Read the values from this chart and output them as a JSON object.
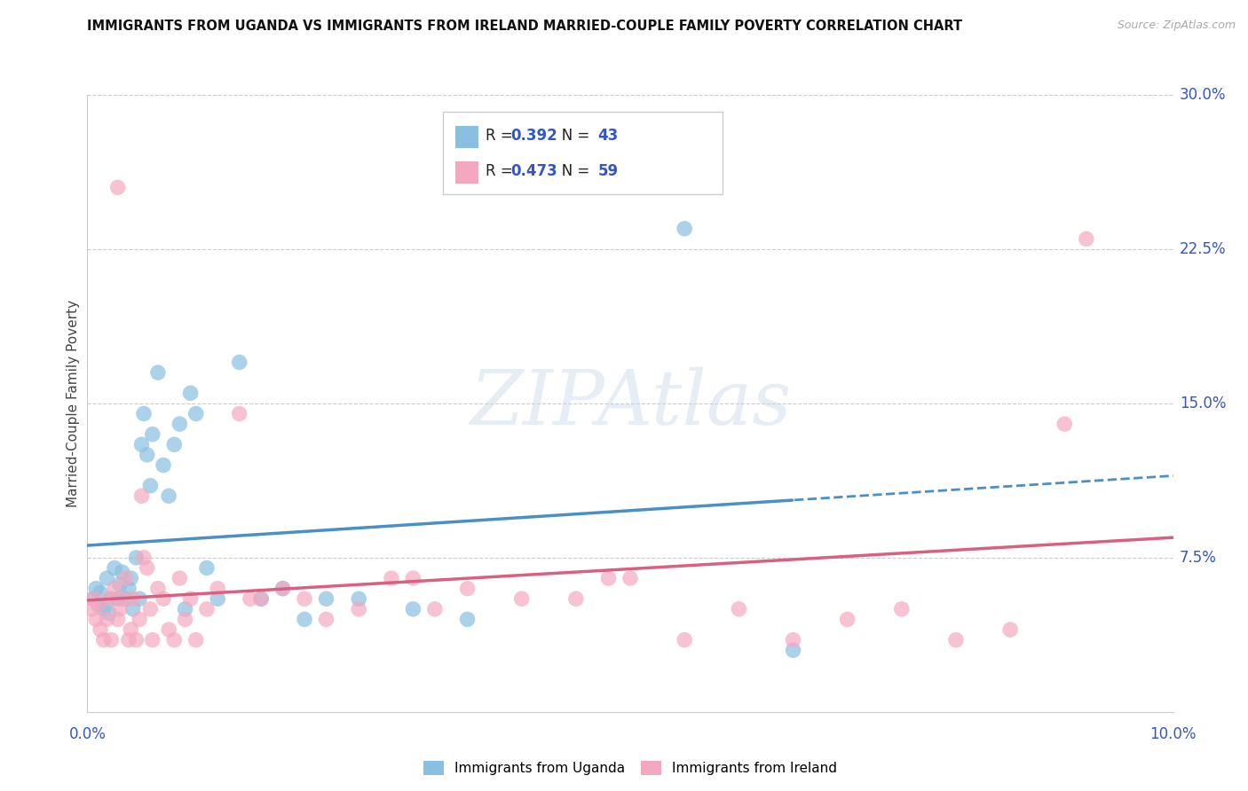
{
  "title": "IMMIGRANTS FROM UGANDA VS IMMIGRANTS FROM IRELAND MARRIED-COUPLE FAMILY POVERTY CORRELATION CHART",
  "source": "Source: ZipAtlas.com",
  "ylabel": "Married-Couple Family Poverty",
  "R_uganda": 0.392,
  "N_uganda": 43,
  "R_ireland": 0.473,
  "N_ireland": 59,
  "color_uganda": "#89bfe0",
  "color_ireland": "#f4a8c0",
  "color_uganda_line": "#4a90c4",
  "color_ireland_line": "#d96080",
  "color_blue_text": "#3355CC",
  "color_gray_text": "#999999",
  "xlim": [
    0.0,
    10.0
  ],
  "ylim": [
    0.0,
    30.0
  ],
  "yticks": [
    7.5,
    15.0,
    22.5,
    30.0
  ],
  "watermark": "ZIPAtlas",
  "uganda_x": [
    0.05,
    0.08,
    0.1,
    0.12,
    0.15,
    0.18,
    0.2,
    0.22,
    0.25,
    0.28,
    0.3,
    0.32,
    0.35,
    0.38,
    0.4,
    0.42,
    0.45,
    0.48,
    0.5,
    0.52,
    0.55,
    0.58,
    0.6,
    0.65,
    0.7,
    0.75,
    0.8,
    0.85,
    0.9,
    0.95,
    1.0,
    1.1,
    1.2,
    1.4,
    1.6,
    1.8,
    2.0,
    2.2,
    2.5,
    3.0,
    3.5,
    5.5,
    6.5
  ],
  "uganda_y": [
    5.5,
    6.0,
    5.2,
    5.8,
    5.0,
    6.5,
    4.8,
    5.5,
    7.0,
    5.5,
    6.2,
    6.8,
    5.5,
    6.0,
    6.5,
    5.0,
    7.5,
    5.5,
    13.0,
    14.5,
    12.5,
    11.0,
    13.5,
    16.5,
    12.0,
    10.5,
    13.0,
    14.0,
    5.0,
    15.5,
    14.5,
    7.0,
    5.5,
    17.0,
    5.5,
    6.0,
    4.5,
    5.5,
    5.5,
    5.0,
    4.5,
    23.5,
    3.0
  ],
  "ireland_x": [
    0.04,
    0.06,
    0.08,
    0.1,
    0.12,
    0.15,
    0.18,
    0.2,
    0.22,
    0.25,
    0.28,
    0.3,
    0.32,
    0.35,
    0.38,
    0.4,
    0.42,
    0.45,
    0.48,
    0.5,
    0.52,
    0.55,
    0.58,
    0.6,
    0.65,
    0.7,
    0.75,
    0.8,
    0.85,
    0.9,
    0.95,
    1.0,
    1.1,
    1.2,
    1.4,
    1.6,
    1.8,
    2.0,
    2.2,
    2.5,
    2.8,
    3.0,
    3.5,
    4.0,
    4.5,
    5.0,
    5.5,
    6.0,
    6.5,
    7.0,
    7.5,
    8.0,
    8.5,
    9.0,
    0.28,
    1.5,
    3.2,
    4.8,
    9.2
  ],
  "ireland_y": [
    5.0,
    5.5,
    4.5,
    5.2,
    4.0,
    3.5,
    4.5,
    5.5,
    3.5,
    6.0,
    4.5,
    5.0,
    5.5,
    6.5,
    3.5,
    4.0,
    5.5,
    3.5,
    4.5,
    10.5,
    7.5,
    7.0,
    5.0,
    3.5,
    6.0,
    5.5,
    4.0,
    3.5,
    6.5,
    4.5,
    5.5,
    3.5,
    5.0,
    6.0,
    14.5,
    5.5,
    6.0,
    5.5,
    4.5,
    5.0,
    6.5,
    6.5,
    6.0,
    5.5,
    5.5,
    6.5,
    3.5,
    5.0,
    3.5,
    4.5,
    5.0,
    3.5,
    4.0,
    14.0,
    25.5,
    5.5,
    5.0,
    6.5,
    23.0
  ]
}
